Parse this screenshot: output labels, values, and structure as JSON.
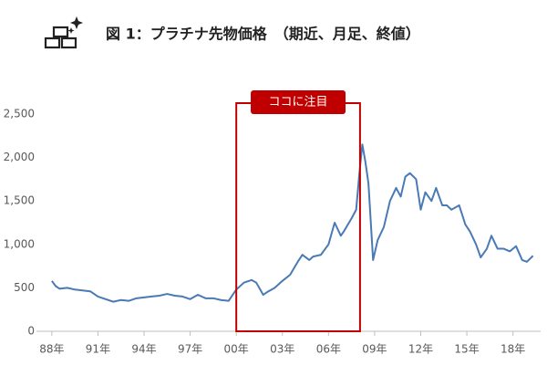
{
  "chart_data": {
    "type": "line",
    "title": "図 1：プラチナ先物価格　（期近、月足、終値）",
    "x": [
      1988,
      1988.25,
      1988.5,
      1989,
      1989.5,
      1990,
      1990.5,
      1991,
      1991.5,
      1992,
      1992.5,
      1993,
      1993.5,
      1994,
      1994.5,
      1995,
      1995.5,
      1996,
      1996.5,
      1997,
      1997.5,
      1998,
      1998.5,
      1999,
      1999.5,
      2000,
      2000.5,
      2001,
      2001.3,
      2001.75,
      2002,
      2002.5,
      2003,
      2003.5,
      2004,
      2004.3,
      2004.75,
      2005,
      2005.5,
      2006,
      2006.4,
      2006.8,
      2007,
      2007.5,
      2007.8,
      2008,
      2008.2,
      2008.4,
      2008.6,
      2008.9,
      2009.2,
      2009.6,
      2010,
      2010.4,
      2010.7,
      2011,
      2011.3,
      2011.7,
      2012,
      2012.3,
      2012.7,
      2013,
      2013.4,
      2013.7,
      2014,
      2014.5,
      2014.9,
      2015.2,
      2015.6,
      2015.9,
      2016.3,
      2016.6,
      2017,
      2017.4,
      2017.8,
      2018.2,
      2018.6,
      2018.9,
      2019.2,
      2019.3
    ],
    "series": [
      {
        "name": "プラチナ先物価格",
        "color": "#4a7ab5",
        "values": [
          580,
          520,
          490,
          500,
          480,
          470,
          460,
          400,
          370,
          340,
          360,
          350,
          380,
          390,
          400,
          410,
          430,
          410,
          400,
          370,
          420,
          380,
          380,
          360,
          350,
          480,
          560,
          590,
          560,
          420,
          450,
          500,
          580,
          650,
          800,
          880,
          820,
          860,
          880,
          1000,
          1250,
          1100,
          1150,
          1300,
          1400,
          1800,
          2150,
          1950,
          1700,
          820,
          1050,
          1200,
          1500,
          1650,
          1550,
          1780,
          1820,
          1750,
          1400,
          1600,
          1500,
          1650,
          1450,
          1450,
          1400,
          1450,
          1230,
          1150,
          1000,
          850,
          950,
          1100,
          950,
          950,
          920,
          980,
          820,
          800,
          850,
          870
        ]
      }
    ],
    "xlim": [
      1987,
      2019.8
    ],
    "xticks": [
      {
        "value": 1988,
        "label": "88年"
      },
      {
        "value": 1991,
        "label": "91年"
      },
      {
        "value": 1994,
        "label": "94年"
      },
      {
        "value": 1997,
        "label": "97年"
      },
      {
        "value": 2000,
        "label": "00年"
      },
      {
        "value": 2003,
        "label": "03年"
      },
      {
        "value": 2006,
        "label": "06年"
      },
      {
        "value": 2009,
        "label": "09年"
      },
      {
        "value": 2012,
        "label": "12年"
      },
      {
        "value": 2015,
        "label": "15年"
      },
      {
        "value": 2018,
        "label": "18年"
      }
    ],
    "ylim": [
      0,
      2500
    ],
    "yticks": [
      0,
      500,
      {
        "value": 1000,
        "label": "1,000"
      },
      {
        "value": 1500,
        "label": "1,500"
      },
      {
        "value": 2000,
        "label": "2,000"
      },
      {
        "value": 2500,
        "label": "2,500"
      }
    ],
    "grid": false,
    "highlight": {
      "label": "ココに注目",
      "xrange": [
        2000,
        2008.05
      ],
      "color": "#c00000"
    }
  }
}
